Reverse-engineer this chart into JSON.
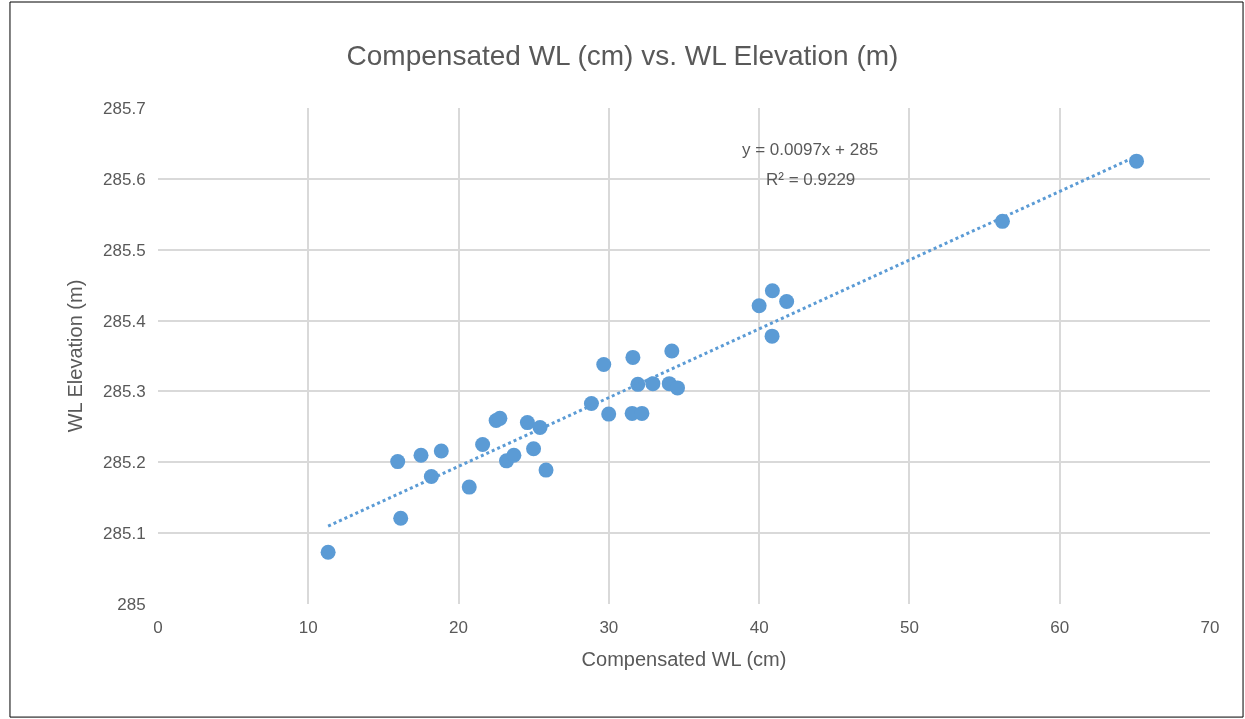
{
  "chart_data": {
    "type": "scatter",
    "title": "Compensated WL (cm) vs. WL Elevation (m)",
    "xlabel": "Compensated WL (cm)",
    "ylabel": "WL Elevation (m)",
    "xlim": [
      0,
      70
    ],
    "xticks": [
      0,
      10,
      20,
      30,
      40,
      50,
      60,
      70
    ],
    "ylim": [
      285,
      285.7
    ],
    "yticks": [
      285,
      285.1,
      285.2,
      285.3,
      285.4,
      285.5,
      285.6,
      285.7
    ],
    "grid": true,
    "annotations": [
      "y = 0.0097x + 285",
      "R² = 0.9229"
    ],
    "series": [
      {
        "marker": "circle",
        "color": "#5b9bd5",
        "x": [
          11.32,
          15.95,
          16.15,
          17.5,
          18.19,
          18.85,
          20.71,
          21.6,
          22.5,
          22.75,
          24.58,
          25.42,
          23.19,
          23.68,
          24.99,
          25.82,
          28.84,
          29.99,
          29.66,
          31.6,
          34.19,
          31.93,
          32.93,
          34.02,
          34.57,
          31.55,
          32.2,
          40.0,
          40.88,
          41.83,
          40.86,
          56.19,
          65.11
        ],
        "values": [
          285.073,
          285.201,
          285.121,
          285.21,
          285.18,
          285.216,
          285.165,
          285.225,
          285.259,
          285.262,
          285.256,
          285.249,
          285.202,
          285.21,
          285.219,
          285.189,
          285.283,
          285.268,
          285.338,
          285.348,
          285.357,
          285.31,
          285.311,
          285.311,
          285.305,
          285.269,
          285.269,
          285.421,
          285.442,
          285.427,
          285.378,
          285.54,
          285.625
        ]
      },
      {
        "type": "line",
        "color": "#5b9bd5",
        "line_style": "dotted",
        "x": [
          11.32,
          65.11
        ],
        "values": [
          285.11,
          285.632
        ]
      }
    ]
  }
}
